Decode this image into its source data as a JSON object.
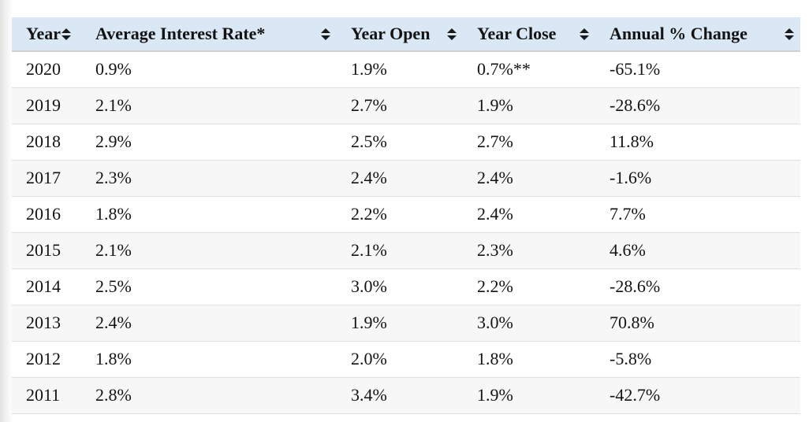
{
  "table": {
    "columns": [
      {
        "label": "Year"
      },
      {
        "label": "Average Interest Rate*"
      },
      {
        "label": "Year Open"
      },
      {
        "label": "Year Close"
      },
      {
        "label": "Annual % Change"
      }
    ],
    "rows": [
      {
        "cells": [
          "2020",
          "0.9%",
          "1.9%",
          "0.7%**",
          "-65.1%"
        ]
      },
      {
        "cells": [
          "2019",
          "2.1%",
          "2.7%",
          "1.9%",
          "-28.6%"
        ]
      },
      {
        "cells": [
          "2018",
          "2.9%",
          "2.5%",
          "2.7%",
          "11.8%"
        ]
      },
      {
        "cells": [
          "2017",
          "2.3%",
          "2.4%",
          "2.4%",
          "-1.6%"
        ]
      },
      {
        "cells": [
          "2016",
          "1.8%",
          "2.2%",
          "2.4%",
          "7.7%"
        ]
      },
      {
        "cells": [
          "2015",
          "2.1%",
          "2.1%",
          "2.3%",
          "4.6%"
        ]
      },
      {
        "cells": [
          "2014",
          "2.5%",
          "3.0%",
          "2.2%",
          "-28.6%"
        ]
      },
      {
        "cells": [
          "2013",
          "2.4%",
          "1.9%",
          "3.0%",
          "70.8%"
        ]
      },
      {
        "cells": [
          "2012",
          "1.8%",
          "2.0%",
          "1.8%",
          "-5.8%"
        ]
      },
      {
        "cells": [
          "2011",
          "2.8%",
          "3.4%",
          "1.9%",
          "-42.7%"
        ]
      }
    ]
  },
  "icons": {
    "sort": "sort-arrows-up-down"
  },
  "colors": {
    "header_bg": "#d9e8f4",
    "stripe_bg": "#f7f7f7",
    "row_border": "#e0e0e0",
    "header_border": "#cdd1d4",
    "text": "#131313",
    "icon": "#1a1a1a"
  },
  "chart_data": {
    "type": "table",
    "title": "",
    "columns": [
      "Year",
      "Average Interest Rate*",
      "Year Open",
      "Year Close",
      "Annual % Change"
    ],
    "years": [
      2020,
      2019,
      2018,
      2017,
      2016,
      2015,
      2014,
      2013,
      2012,
      2011
    ],
    "series": [
      {
        "name": "Average Interest Rate*",
        "values": [
          0.9,
          2.1,
          2.9,
          2.3,
          1.8,
          2.1,
          2.5,
          2.4,
          1.8,
          2.8
        ],
        "unit": "%"
      },
      {
        "name": "Year Open",
        "values": [
          1.9,
          2.7,
          2.5,
          2.4,
          2.2,
          2.1,
          3.0,
          1.9,
          2.0,
          3.4
        ],
        "unit": "%"
      },
      {
        "name": "Year Close",
        "values": [
          0.7,
          1.9,
          2.7,
          2.4,
          2.4,
          2.3,
          2.2,
          3.0,
          1.8,
          1.9
        ],
        "unit": "%",
        "footnote_marker_on": "2020",
        "footnote_marker": "**"
      },
      {
        "name": "Annual % Change",
        "values": [
          -65.1,
          -28.6,
          11.8,
          -1.6,
          7.7,
          4.6,
          -28.6,
          70.8,
          -5.8,
          -42.7
        ],
        "unit": "%"
      }
    ]
  }
}
